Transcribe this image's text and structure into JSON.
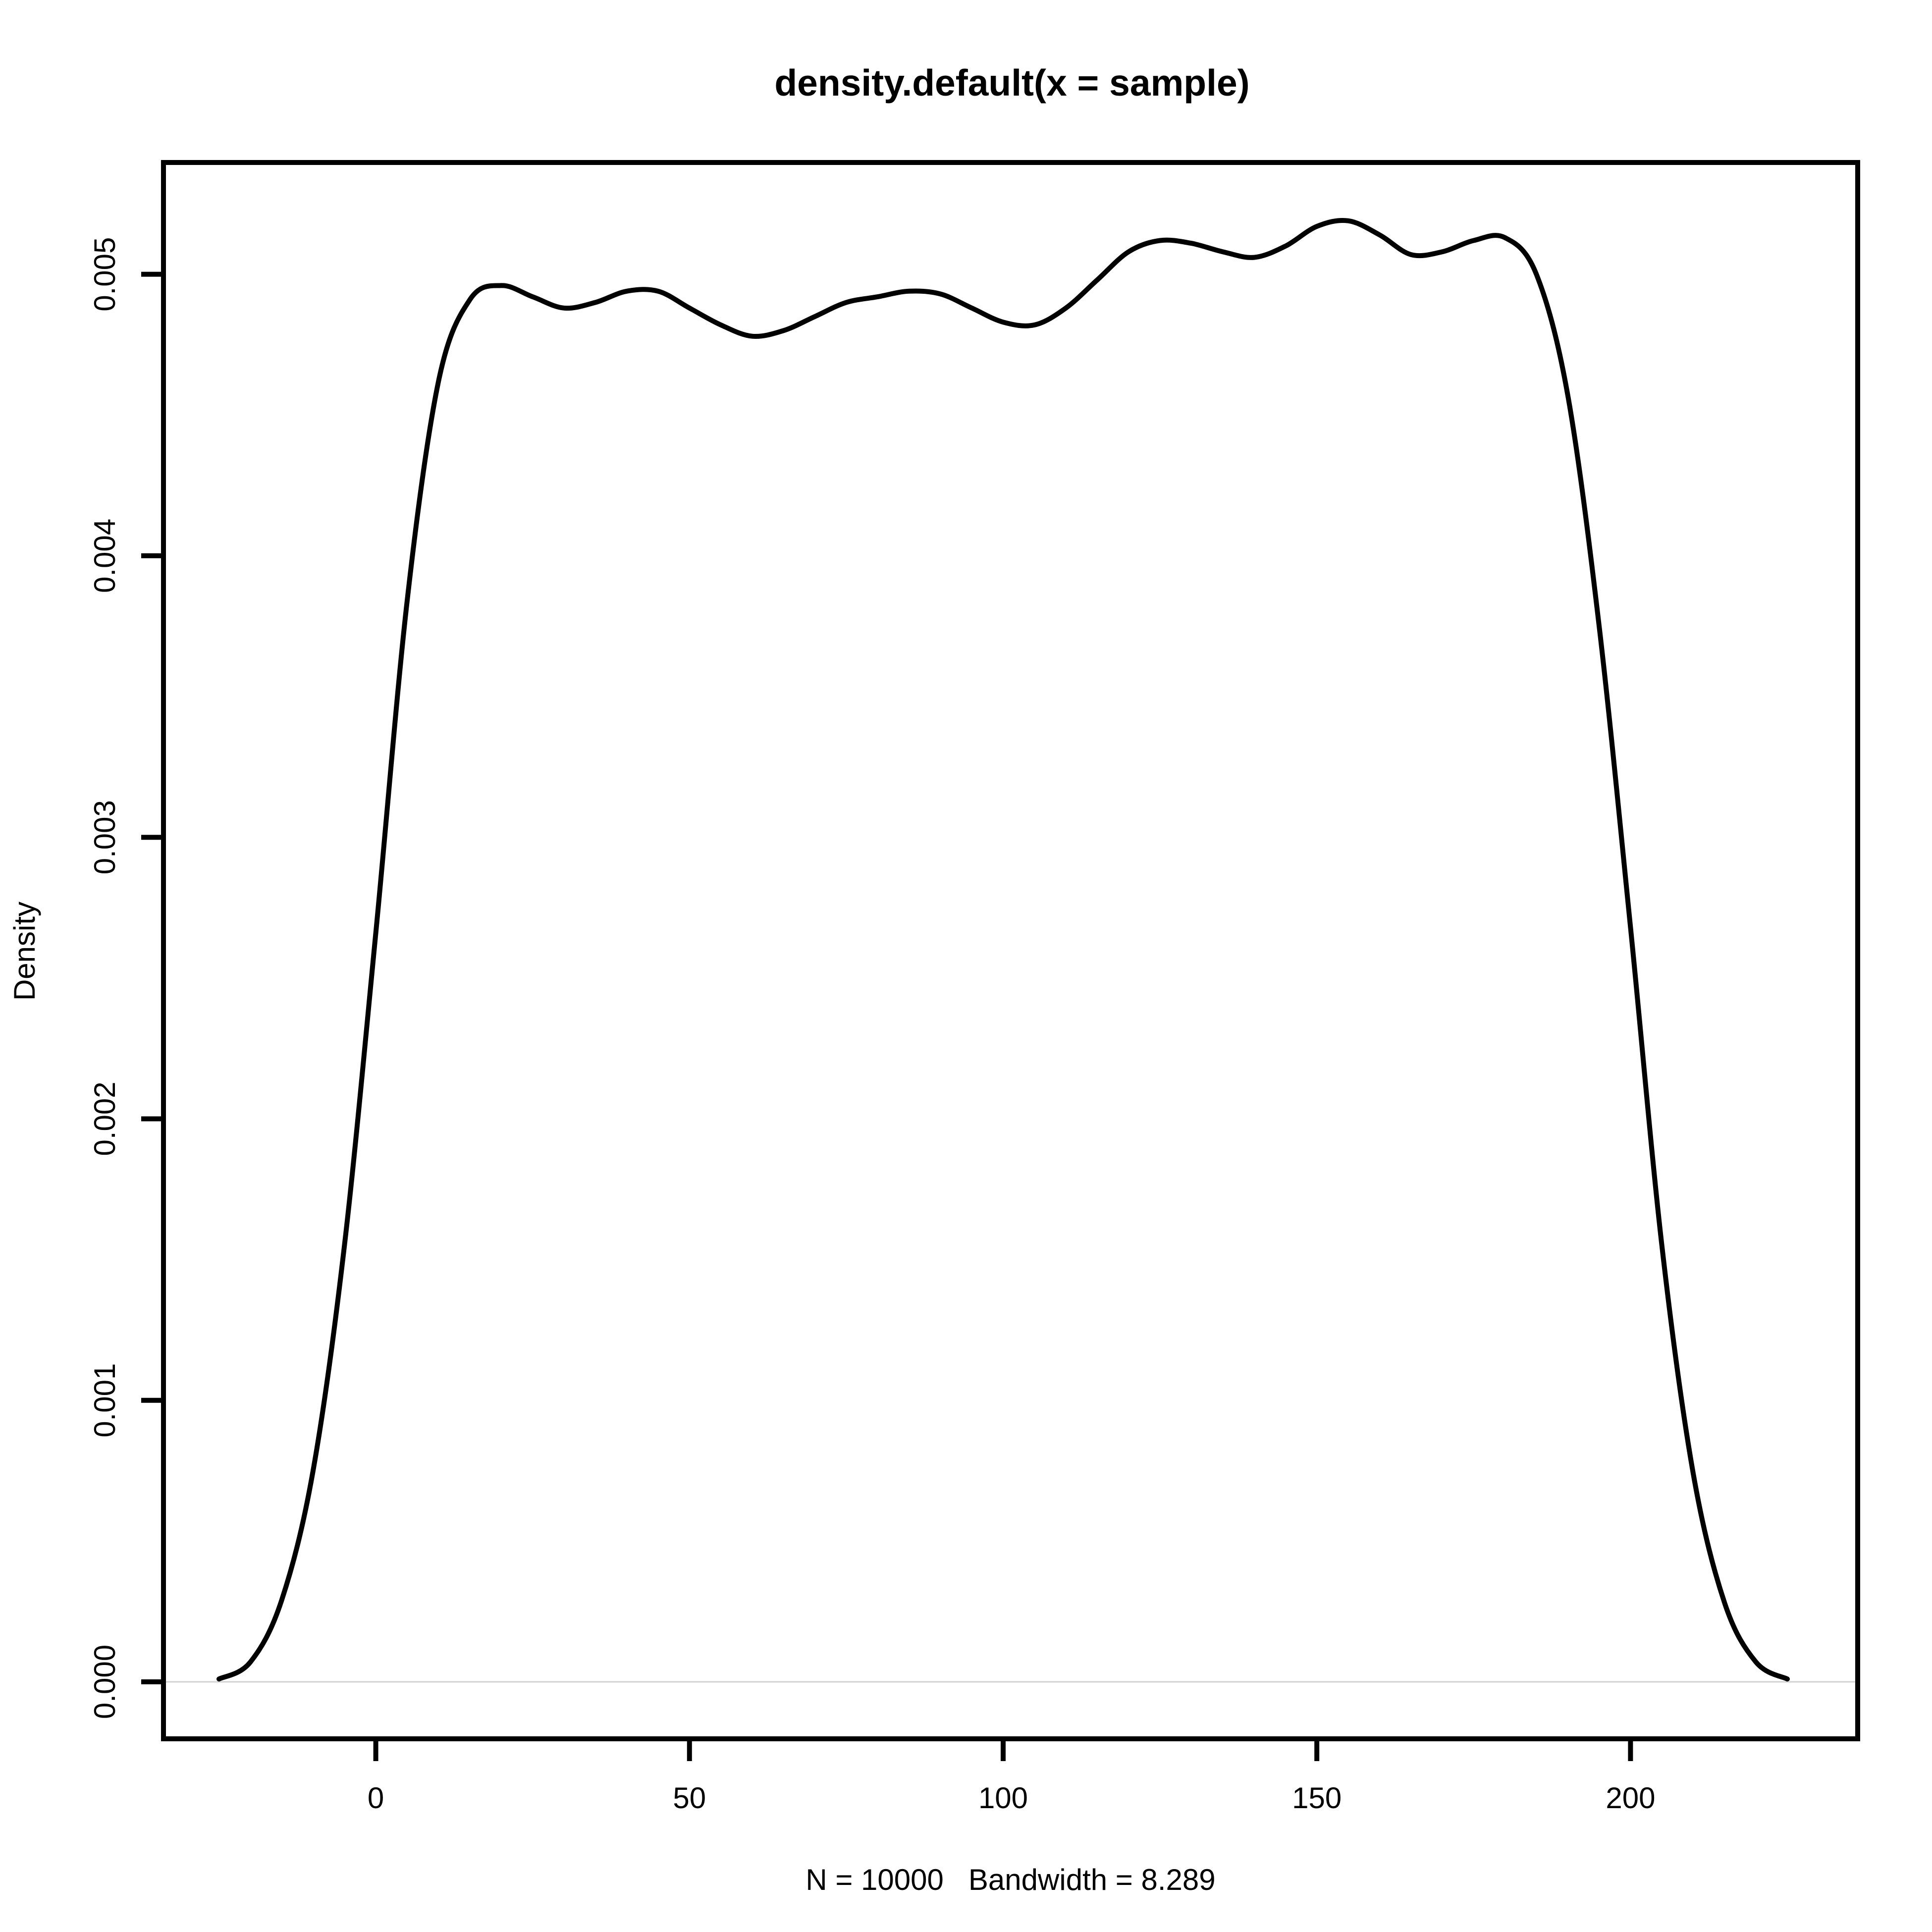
{
  "chart_data": {
    "type": "line",
    "title": "density.default(x = sample)",
    "xlabel": "N = 10000   Bandwidth = 8.289",
    "ylabel": "Density",
    "xlim": [
      -25,
      225
    ],
    "ylim": [
      0,
      0.0052
    ],
    "x_ticks": [
      0,
      50,
      100,
      150,
      200
    ],
    "x_tick_labels": [
      "0",
      "50",
      "100",
      "150",
      "200"
    ],
    "y_ticks": [
      0,
      0.001,
      0.002,
      0.003,
      0.004,
      0.005
    ],
    "y_tick_labels": [
      "0.000",
      "0.001",
      "0.002",
      "0.003",
      "0.004",
      "0.005"
    ],
    "grid": false,
    "zero_line": true,
    "line_color": "#000000",
    "zero_line_color": "#d3d3d3",
    "series": [
      {
        "x": [
          -25,
          -20,
          -15,
          -10,
          -5,
          0,
          5,
          10,
          15,
          20,
          25,
          30,
          35,
          40,
          45,
          50,
          55,
          60,
          65,
          70,
          75,
          80,
          85,
          90,
          95,
          100,
          105,
          110,
          115,
          120,
          125,
          130,
          135,
          140,
          145,
          150,
          155,
          160,
          165,
          170,
          175,
          180,
          185,
          190,
          195,
          200,
          205,
          210,
          215,
          220,
          225
        ],
        "y": [
          1e-05,
          7e-05,
          0.00029,
          0.00075,
          0.00155,
          0.00266,
          0.00384,
          0.00462,
          0.00491,
          0.00496,
          0.00492,
          0.00488,
          0.0049,
          0.00494,
          0.00494,
          0.00488,
          0.00482,
          0.00478,
          0.0048,
          0.00485,
          0.0049,
          0.00492,
          0.00494,
          0.00493,
          0.00488,
          0.00483,
          0.00482,
          0.00488,
          0.00498,
          0.00508,
          0.00512,
          0.00511,
          0.00508,
          0.00506,
          0.0051,
          0.00517,
          0.00519,
          0.00514,
          0.00507,
          0.00508,
          0.00512,
          0.00513,
          0.005,
          0.00457,
          0.00375,
          0.00268,
          0.00155,
          0.00074,
          0.00028,
          7e-05,
          1e-05
        ]
      }
    ]
  }
}
